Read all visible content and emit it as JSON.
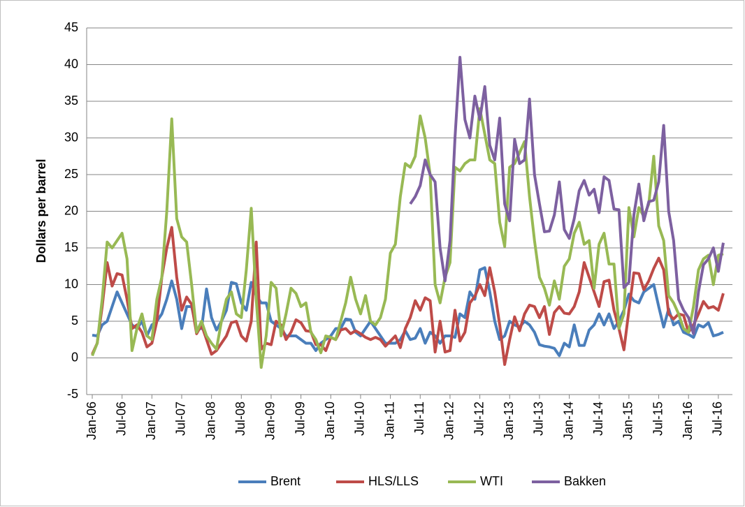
{
  "chart_data": {
    "type": "line",
    "ylabel": "Dollars per barrel",
    "ylim": [
      -5,
      45
    ],
    "yticks": [
      -5,
      0,
      5,
      10,
      15,
      20,
      25,
      30,
      35,
      40,
      45
    ],
    "grid": true,
    "legend": "bottom",
    "categories": [
      "Jan-06",
      null,
      null,
      null,
      null,
      null,
      "Jul-06",
      null,
      null,
      null,
      null,
      null,
      "Jan-07",
      null,
      null,
      null,
      null,
      null,
      "Jul-07",
      null,
      null,
      null,
      null,
      null,
      "Jan-08",
      null,
      null,
      null,
      null,
      null,
      "Jul-08",
      null,
      null,
      null,
      null,
      null,
      "Jan-09",
      null,
      null,
      null,
      null,
      null,
      "Jul-09",
      null,
      null,
      null,
      null,
      null,
      "Jan-10",
      null,
      null,
      null,
      null,
      null,
      "Jul-10",
      null,
      null,
      null,
      null,
      null,
      "Jan-11",
      null,
      null,
      null,
      null,
      null,
      "Jul-11",
      null,
      null,
      null,
      null,
      null,
      "Jan-12",
      null,
      null,
      null,
      null,
      null,
      "Jul-12",
      null,
      null,
      null,
      null,
      null,
      "Jan-13",
      null,
      null,
      null,
      null,
      null,
      "Jul-13",
      null,
      null,
      null,
      null,
      null,
      "Jan-14",
      null,
      null,
      null,
      null,
      null,
      "Jul-14",
      null,
      null,
      null,
      null,
      null,
      "Jan-15",
      null,
      null,
      null,
      null,
      null,
      "Jul-15",
      null,
      null,
      null,
      null,
      null,
      "Jan-16",
      null,
      null,
      null,
      null,
      null,
      "Jul-16",
      null
    ],
    "series": [
      {
        "name": "Brent",
        "color": "#4a7ebb",
        "values": [
          3.1,
          3,
          4.5,
          5,
          7,
          9,
          7.5,
          6,
          4.5,
          4,
          5,
          3,
          4.5,
          5,
          6,
          8,
          10.5,
          8,
          4,
          7,
          7,
          4,
          4,
          9.4,
          5.5,
          3.8,
          5,
          6.5,
          10.3,
          10.1,
          7.5,
          6.5,
          10.3,
          8.5,
          7.5,
          7.5,
          5,
          4.5,
          4,
          3,
          3,
          3,
          2.5,
          2,
          2,
          1,
          2,
          2.5,
          3,
          4,
          4,
          5.3,
          5.2,
          3.5,
          3,
          4,
          5,
          4,
          3,
          2,
          2,
          2,
          2.5,
          3.7,
          2.5,
          2.7,
          4,
          2,
          3.5,
          3,
          2,
          3,
          3,
          2.8,
          6,
          5.5,
          9,
          8,
          12,
          12.3,
          9,
          5,
          2.5,
          3,
          5,
          4.5,
          4.2,
          5,
          4.5,
          3.5,
          1.8,
          1.6,
          1.5,
          1.3,
          0.3,
          2,
          1.5,
          4.5,
          1.7,
          1.7,
          3.8,
          4.5,
          6,
          4.5,
          6,
          4,
          5,
          6.5,
          8.7,
          7.8,
          7.5,
          9,
          9.5,
          10,
          7,
          4.2,
          6.7,
          4.5,
          5,
          3.5,
          3.2,
          2.8,
          4.5,
          4.2,
          4.8,
          3,
          3.2,
          3.5
        ]
      },
      {
        "name": "HLS/LLS",
        "color": "#be4b48",
        "values": [
          0.5,
          2,
          7,
          13,
          9.8,
          11.5,
          11.3,
          8,
          4,
          4.5,
          3.5,
          1.5,
          2,
          5,
          11,
          15,
          17.8,
          11,
          6.5,
          8.3,
          7.3,
          3.3,
          4.5,
          2.5,
          0.5,
          1,
          2,
          3,
          4.8,
          5,
          3,
          2.3,
          5,
          15.8,
          1.2,
          2,
          1.8,
          5,
          4.5,
          2.5,
          3.5,
          5.2,
          4.8,
          3.7,
          3.6,
          1.8,
          1.8,
          1,
          2.8,
          2.5,
          3.8,
          4,
          3.3,
          3.7,
          3.3,
          2.8,
          2.5,
          2.8,
          2.5,
          1.6,
          2.3,
          3,
          1.4,
          4,
          5.5,
          7.8,
          6.5,
          8.2,
          7.8,
          0.8,
          5,
          0.8,
          1,
          6.5,
          2.3,
          3.5,
          7.5,
          8.4,
          10,
          8.5,
          12.3,
          9,
          4.5,
          -0.9,
          2.5,
          5.6,
          3.7,
          6,
          7.2,
          7,
          5.5,
          7,
          3.2,
          6.2,
          7,
          6.1,
          6,
          7,
          9,
          13,
          11,
          9,
          7,
          10.4,
          10.6,
          6.5,
          4,
          1.1,
          6.5,
          11.6,
          11.5,
          9.3,
          10.5,
          12.2,
          13.6,
          12,
          6,
          5.3,
          6,
          5.8,
          3.5,
          4.5,
          6,
          7.7,
          6.8,
          7,
          6.5,
          8.8
        ]
      },
      {
        "name": "WTI",
        "color": "#98b954",
        "values": [
          0.3,
          2,
          8,
          15.8,
          15,
          16,
          17,
          13.5,
          1,
          4,
          6,
          3,
          2.5,
          8,
          11,
          20,
          32.6,
          19,
          16.5,
          15.8,
          10,
          3.5,
          5,
          3,
          2,
          1.2,
          5,
          8,
          9,
          6,
          5.5,
          12,
          20.4,
          8,
          -1.3,
          3,
          10.3,
          9.5,
          3,
          6,
          9.5,
          8.8,
          7,
          7.5,
          3.5,
          2.5,
          0.7,
          3,
          2.8,
          2.5,
          5,
          7.5,
          11,
          8,
          6,
          8.5,
          5,
          4.5,
          5.5,
          8,
          14.3,
          15.5,
          22,
          26.5,
          26,
          27.5,
          33,
          30,
          25,
          10,
          7.5,
          11,
          13,
          26,
          25.5,
          26.5,
          27,
          27,
          34,
          30.5,
          27,
          26.5,
          18.5,
          15.2,
          26,
          26.5,
          28,
          29.5,
          22,
          16,
          11,
          9.5,
          7.2,
          10.5,
          8,
          12.5,
          13.5,
          17,
          18.5,
          15.5,
          16,
          9.5,
          15.5,
          17,
          12.8,
          12.8,
          4,
          6,
          20.5,
          16.5,
          20.5,
          19.3,
          21,
          27.5,
          18,
          16,
          8.5,
          7.5,
          6,
          4,
          3.5,
          7,
          12,
          13.5,
          14,
          10,
          14,
          14.2
        ]
      },
      {
        "name": "Bakken",
        "color": "#7d60a0",
        "values": [
          null,
          null,
          null,
          null,
          null,
          null,
          null,
          null,
          null,
          null,
          null,
          null,
          null,
          null,
          null,
          null,
          null,
          null,
          null,
          null,
          null,
          null,
          null,
          null,
          null,
          null,
          null,
          null,
          null,
          null,
          null,
          null,
          null,
          null,
          null,
          null,
          null,
          null,
          null,
          null,
          null,
          null,
          null,
          null,
          null,
          null,
          null,
          null,
          null,
          null,
          null,
          null,
          null,
          null,
          null,
          null,
          null,
          null,
          null,
          null,
          null,
          null,
          null,
          null,
          21,
          22,
          23.5,
          27,
          25,
          24,
          15,
          10.5,
          16,
          30,
          41,
          32.5,
          30,
          35.7,
          32.5,
          37,
          29,
          27,
          32.7,
          21,
          18.7,
          29.8,
          26.5,
          27,
          35.3,
          25,
          21,
          17.2,
          17.3,
          19.5,
          24,
          17.5,
          16.3,
          19,
          22.8,
          24.2,
          22.2,
          23,
          19.8,
          24.7,
          24.2,
          20.3,
          20.2,
          9.6,
          10.3,
          19.5,
          23.7,
          18.7,
          21.3,
          21.5,
          24,
          31.7,
          20,
          16,
          8,
          6.5,
          5.5,
          3.3,
          9,
          12.7,
          13.5,
          15,
          11.8,
          15.7
        ]
      }
    ]
  }
}
